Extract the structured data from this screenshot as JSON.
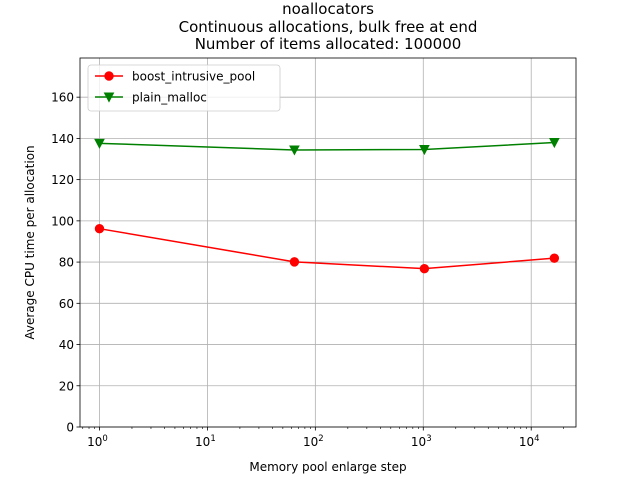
{
  "chart_data": {
    "type": "line",
    "title_lines": [
      "noallocators",
      "Continuous allocations, bulk free at end",
      "Number of items allocated: 100000"
    ],
    "xlabel": "Memory pool enlarge step",
    "ylabel": "Average CPU time per allocation",
    "x_scale": "log",
    "x": [
      1,
      64,
      1024,
      16384
    ],
    "xlim": [
      0.66,
      26000
    ],
    "ylim": [
      0,
      179
    ],
    "x_ticks": [
      {
        "value": 1,
        "base": "10",
        "exp": "0"
      },
      {
        "value": 10,
        "base": "10",
        "exp": "1"
      },
      {
        "value": 100,
        "base": "10",
        "exp": "2"
      },
      {
        "value": 1000,
        "base": "10",
        "exp": "3"
      },
      {
        "value": 10000,
        "base": "10",
        "exp": "4"
      }
    ],
    "y_ticks": [
      0,
      20,
      40,
      60,
      80,
      100,
      120,
      140,
      160
    ],
    "grid": true,
    "legend_position": "top-left",
    "series": [
      {
        "name": "boost_intrusive_pool",
        "color": "#ff0000",
        "marker": "circle",
        "values": [
          96.2,
          80.1,
          76.8,
          81.9
        ]
      },
      {
        "name": "plain_malloc",
        "color": "#008000",
        "marker": "triangle-down",
        "values": [
          137.6,
          134.4,
          134.6,
          138.0
        ]
      }
    ]
  }
}
